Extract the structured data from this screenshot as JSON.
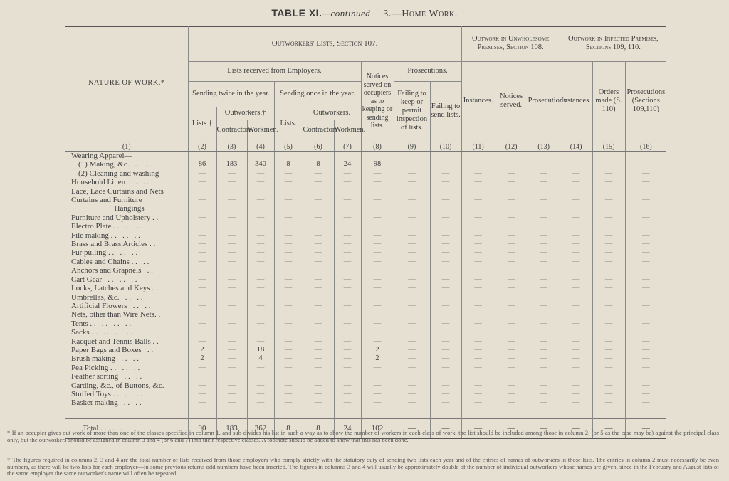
{
  "title": {
    "table_label": "TABLE XI.",
    "continued": "—continued",
    "section": "3.—Home Work."
  },
  "headers": {
    "nature": "NATURE OF WORK.*",
    "outworkers_lists": "Outworkers' Lists, Section 107.",
    "unwholesome": "Outwork in Unwholesome Premises, Section 108.",
    "infected": "Outwork in Infected Premises, Sections 109, 110.",
    "lists_received": "Lists received from Employers.",
    "notices_served": "Notices served on occupiers as to keeping or sending lists.",
    "prosecutions": "Prosecutions.",
    "sending_twice": "Sending twice in the year.",
    "sending_once": "Sending once in the year.",
    "failing_keep": "Failing to keep or permit inspection of lists.",
    "failing_send": "Failing to send lists.",
    "instances_12": "Instances.",
    "notices_served_12": "Notices served.",
    "prosecutions_13": "Prosecutions.",
    "instances_14": "Instances.",
    "orders_made": "Orders made (S. 110)",
    "prosecutions_16": "Prosecutions (Sections 109,110)",
    "lists_dagger": "Lists †",
    "outworkers_dagger": "Outworkers.†",
    "lists_5": "Lists.",
    "outworkers_once": "Outworkers.",
    "contractors_3": "Contractors.",
    "workmen_4": "Workmen.",
    "contractors_6": "Contractors",
    "workmen_7": "Workmen."
  },
  "column_numbers": [
    "(1)",
    "(2)",
    "(3)",
    "(4)",
    "(5)",
    "(6)",
    "(7)",
    "(8)",
    "(9)",
    "(10)",
    "(11)",
    "(12)",
    "(13)",
    "(14)",
    "(15)",
    "(16)"
  ],
  "rows": [
    {
      "label": "Wearing Apparel—",
      "values": [
        "",
        "",
        "",
        "",
        "",
        "",
        "",
        "",
        "",
        "",
        "",
        "",
        "",
        "",
        ""
      ]
    },
    {
      "label": "(1) Making, &c. . .     . .",
      "values": [
        "86",
        "183",
        "340",
        "8",
        "8",
        "24",
        "98",
        "—",
        "—",
        "—",
        "—",
        "—",
        "—",
        "—",
        "—"
      ]
    },
    {
      "label": "(2) Cleaning and washing",
      "values": [
        "—",
        "—",
        "—",
        "—",
        "—",
        "—",
        "—",
        "—",
        "—",
        "—",
        "—",
        "—",
        "—",
        "—",
        "—"
      ]
    },
    {
      "label": "Household Linen   . .   . .",
      "values": [
        "—",
        "—",
        "—",
        "—",
        "—",
        "—",
        "—",
        "—",
        "—",
        "—",
        "—",
        "—",
        "—",
        "—",
        "—"
      ]
    },
    {
      "label": "Lace, Lace Curtains and Nets",
      "values": [
        "—",
        "—",
        "—",
        "—",
        "—",
        "—",
        "—",
        "—",
        "—",
        "—",
        "—",
        "—",
        "—",
        "—",
        "—"
      ]
    },
    {
      "label": "Curtains and Furniture",
      "values": [
        "—",
        "—",
        "—",
        "—",
        "—",
        "—",
        "—",
        "—",
        "—",
        "—",
        "—",
        "—",
        "—",
        "—",
        "—"
      ]
    },
    {
      "label": "                      Hangings",
      "values": [
        "—",
        "—",
        "—",
        "—",
        "—",
        "—",
        "—",
        "—",
        "—",
        "—",
        "—",
        "—",
        "—",
        "—",
        "—"
      ]
    },
    {
      "label": "Furniture and Upholstery . .",
      "values": [
        "—",
        "—",
        "—",
        "—",
        "—",
        "—",
        "—",
        "—",
        "—",
        "—",
        "—",
        "—",
        "—",
        "—",
        "—"
      ]
    },
    {
      "label": "Electro Plate . .   . .   . .",
      "values": [
        "—",
        "—",
        "—",
        "—",
        "—",
        "—",
        "—",
        "—",
        "—",
        "—",
        "—",
        "—",
        "—",
        "—",
        "—"
      ]
    },
    {
      "label": "File making . .   . .   . .",
      "values": [
        "—",
        "—",
        "—",
        "—",
        "—",
        "—",
        "—",
        "—",
        "—",
        "—",
        "—",
        "—",
        "—",
        "—",
        "—"
      ]
    },
    {
      "label": "Brass and Brass Articles . .",
      "values": [
        "—",
        "—",
        "—",
        "—",
        "—",
        "—",
        "—",
        "—",
        "—",
        "—",
        "—",
        "—",
        "—",
        "—",
        "—"
      ]
    },
    {
      "label": "Fur pulling . .   . .   . .",
      "values": [
        "—",
        "—",
        "—",
        "—",
        "—",
        "—",
        "—",
        "—",
        "—",
        "—",
        "—",
        "—",
        "—",
        "—",
        "—"
      ]
    },
    {
      "label": "Cables and Chains . .   . .",
      "values": [
        "—",
        "—",
        "—",
        "—",
        "—",
        "—",
        "—",
        "—",
        "—",
        "—",
        "—",
        "—",
        "—",
        "—",
        "—"
      ]
    },
    {
      "label": "Anchors and Grapnels   . .",
      "values": [
        "—",
        "—",
        "—",
        "—",
        "—",
        "—",
        "—",
        "—",
        "—",
        "—",
        "—",
        "—",
        "—",
        "—",
        "—"
      ]
    },
    {
      "label": "Cart Gear   . .   . .   . .",
      "values": [
        "—",
        "—",
        "—",
        "—",
        "—",
        "—",
        "—",
        "—",
        "—",
        "—",
        "—",
        "—",
        "—",
        "—",
        "—"
      ]
    },
    {
      "label": "Locks, Latches and Keys . .",
      "values": [
        "—",
        "—",
        "—",
        "—",
        "—",
        "—",
        "—",
        "—",
        "—",
        "—",
        "—",
        "—",
        "—",
        "—",
        "—"
      ]
    },
    {
      "label": "Umbrellas, &c.   . .   . .",
      "values": [
        "—",
        "—",
        "—",
        "—",
        "—",
        "—",
        "—",
        "—",
        "—",
        "—",
        "—",
        "—",
        "—",
        "—",
        "—"
      ]
    },
    {
      "label": "Artificial Flowers   . .   . .",
      "values": [
        "—",
        "—",
        "—",
        "—",
        "—",
        "—",
        "—",
        "—",
        "—",
        "—",
        "—",
        "—",
        "—",
        "—",
        "—"
      ]
    },
    {
      "label": "Nets, other than Wire Nets. .",
      "values": [
        "—",
        "—",
        "—",
        "—",
        "—",
        "—",
        "—",
        "—",
        "—",
        "—",
        "—",
        "—",
        "—",
        "—",
        "—"
      ]
    },
    {
      "label": "Tents . .   . .   . .   . .",
      "values": [
        "—",
        "—",
        "—",
        "—",
        "—",
        "—",
        "—",
        "—",
        "—",
        "—",
        "—",
        "—",
        "—",
        "—",
        "—"
      ]
    },
    {
      "label": "Sacks . .   . .   . .   . .",
      "values": [
        "—",
        "—",
        "—",
        "—",
        "—",
        "—",
        "—",
        "—",
        "—",
        "—",
        "—",
        "—",
        "—",
        "—",
        "—"
      ]
    },
    {
      "label": "Racquet and Tennis Balls . .",
      "values": [
        "—",
        "—",
        "—",
        "—",
        "—",
        "—",
        "—",
        "—",
        "—",
        "—",
        "—",
        "—",
        "—",
        "—",
        "—"
      ]
    },
    {
      "label": "Paper Bags and Boxes   . .",
      "values": [
        "2",
        "—",
        "18",
        "—",
        "—",
        "—",
        "2",
        "—",
        "—",
        "—",
        "—",
        "—",
        "—",
        "—",
        "—"
      ]
    },
    {
      "label": "Brush making   . .   . .",
      "values": [
        "2",
        "—",
        "4",
        "—",
        "—",
        "—",
        "2",
        "—",
        "—",
        "—",
        "—",
        "—",
        "—",
        "—",
        "—"
      ]
    },
    {
      "label": "Pea Picking . .   . .   . .",
      "values": [
        "—",
        "—",
        "—",
        "—",
        "—",
        "—",
        "—",
        "—",
        "—",
        "—",
        "—",
        "—",
        "—",
        "—",
        "—"
      ]
    },
    {
      "label": "Feather sorting   . .   . .",
      "values": [
        "—",
        "—",
        "—",
        "—",
        "—",
        "—",
        "—",
        "—",
        "—",
        "—",
        "—",
        "—",
        "—",
        "—",
        "—"
      ]
    },
    {
      "label": "Carding, &c., of Buttons, &c.",
      "values": [
        "—",
        "—",
        "—",
        "—",
        "—",
        "—",
        "—",
        "—",
        "—",
        "—",
        "—",
        "—",
        "—",
        "—",
        "—"
      ]
    },
    {
      "label": "Stuffed Toys . .   . .   . .",
      "values": [
        "—",
        "—",
        "—",
        "—",
        "—",
        "—",
        "—",
        "—",
        "—",
        "—",
        "—",
        "—",
        "—",
        "—",
        "—"
      ]
    },
    {
      "label": "Basket making   . .   . .",
      "values": [
        "—",
        "—",
        "—",
        "—",
        "—",
        "—",
        "—",
        "—",
        "—",
        "—",
        "—",
        "—",
        "—",
        "—",
        "—"
      ]
    },
    {
      "label": "",
      "values": [
        "",
        "",
        "",
        "",
        "",
        "",
        "",
        "",
        "",
        "",
        "",
        "",
        "",
        "",
        ""
      ]
    }
  ],
  "total": {
    "label": "Total   . .   . .   . .",
    "values": [
      "90",
      "183",
      "362",
      "8",
      "8",
      "24",
      "102",
      "—",
      "—",
      "—",
      "—",
      "—",
      "—",
      "—",
      "—"
    ]
  },
  "footnotes": {
    "star": "* If an occupier gives out work of more than one of the classes specified in column 1, and sub-divides his list in such a way as to show the number of workers in each class of work, the list should be included among those in column 2, (or 5 as the case may be) against the principal class only, but the outworkers should be assigned in column 3 and 4 (or 6 and 7) into their respective classes. A footnote should be added to show that this has been done.",
    "dagger": "† The figures required in columns 2, 3 and 4 are the total number of lists received from those employers who comply strictly with the statutory duty of sending two lists each year and of the entries of names of outworkers in those lists. The entries in column 2 must necessarily be even numbers, as there will be two lists for each employer—in some previous returns odd numbers have been inserted. The figures in columns 3 and 4 will usually be approximately double of the number of individual outworkers whose names are given, since in the February and August lists of the same employer the same outworker's name will often be repeated."
  }
}
